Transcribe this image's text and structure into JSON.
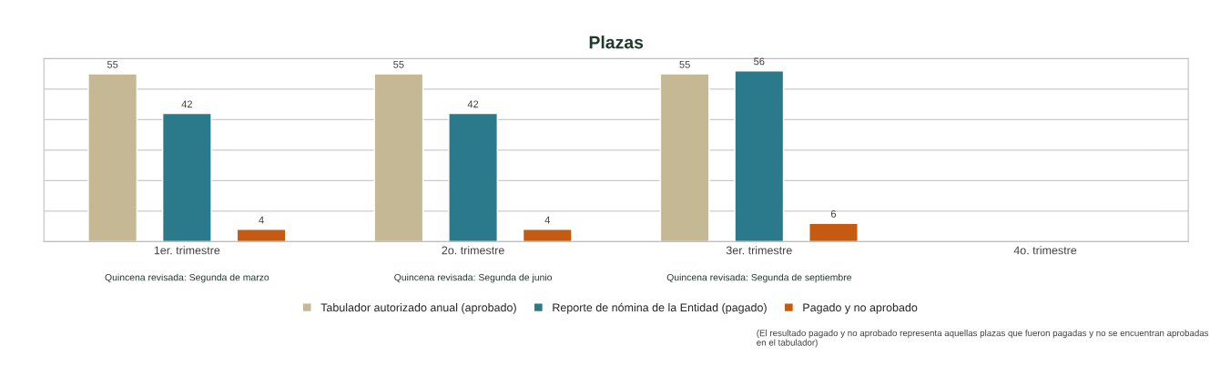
{
  "chart_data": {
    "type": "bar",
    "title": "Plazas",
    "categories": [
      "1er. trimestre",
      "2o. trimestre",
      "3er. trimestre",
      "4o. trimestre"
    ],
    "series": [
      {
        "name": "Tabulador autorizado anual (aprobado)",
        "color": "#c4b994",
        "values": [
          55,
          55,
          55,
          null
        ]
      },
      {
        "name": "Reporte de nómina de la Entidad (pagado)",
        "color": "#2a7a8c",
        "values": [
          42,
          42,
          56,
          null
        ]
      },
      {
        "name": "Pagado y no aprobado",
        "color": "#c55a11",
        "values": [
          4,
          4,
          6,
          null
        ]
      }
    ],
    "ylim": [
      0,
      60
    ],
    "yticks": [
      {
        "value": 0,
        "label": null
      },
      {
        "value": 10,
        "label": null
      },
      {
        "value": 20,
        "label": null
      },
      {
        "value": 30,
        "label": null
      },
      {
        "value": 40,
        "label": null
      },
      {
        "value": 50,
        "label": null
      },
      {
        "value": 60,
        "label": null
      }
    ],
    "tick_labels": "x",
    "grid": "y",
    "legend": "bottom",
    "data_labels": true,
    "annotations": [
      "Quincena revisada: Segunda de marzo",
      "Quincena revisada: Segunda de junio",
      "Quincena revisada: Segunda de septiembre",
      "(El resultado pagado y no aprobado representa aquellas plazas que fueron pagadas y no se encuentran aprobadas en el tabulador)"
    ]
  }
}
